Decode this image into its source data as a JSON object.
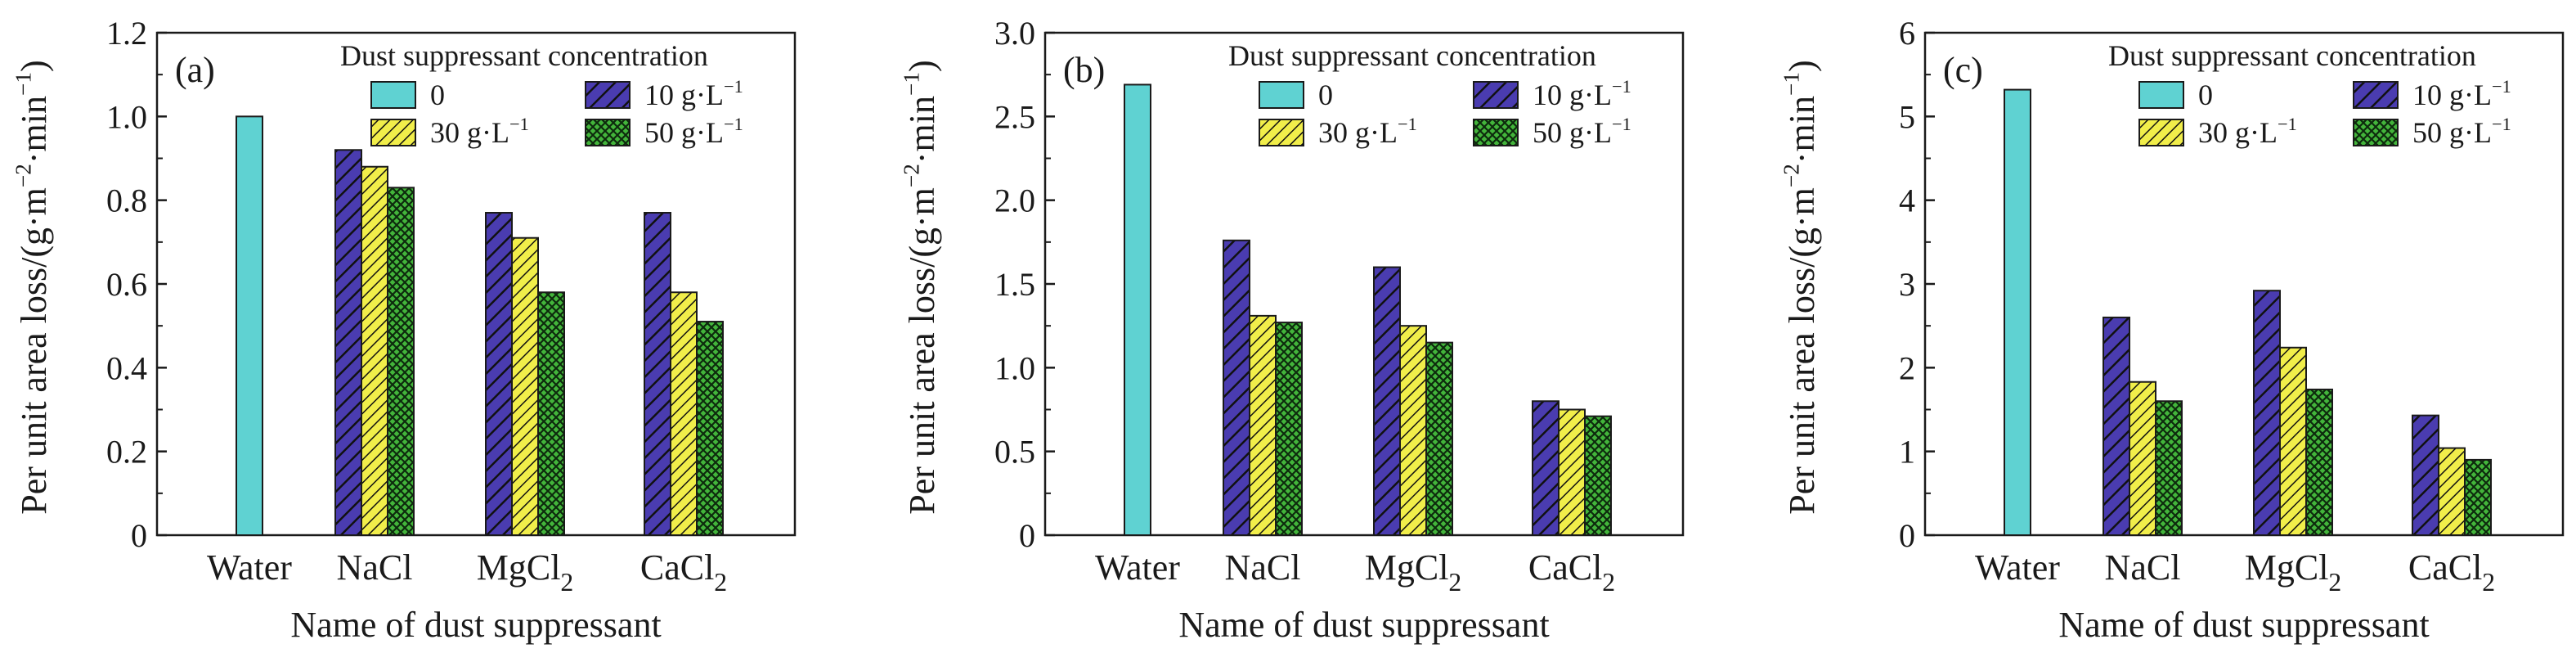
{
  "chart_data": [
    {
      "type": "bar",
      "panel_label": "(a)",
      "xlabel": "Name of dust suppressant",
      "ylabel": "Per unit area loss/(g·m⁻²·min⁻¹)",
      "ylim": [
        0,
        1.2
      ],
      "yticks": [
        "0",
        "0.2",
        "0.4",
        "0.6",
        "0.8",
        "1.0",
        "1.2"
      ],
      "ytick_values": [
        0,
        0.2,
        0.4,
        0.6,
        0.8,
        1.0,
        1.2
      ],
      "legend_title": "Dust suppressant concentration",
      "categories": [
        "Water",
        "NaCl",
        "MgCl2",
        "CaCl2"
      ],
      "series": [
        {
          "name": "0",
          "values": [
            1.0,
            null,
            null,
            null
          ]
        },
        {
          "name": "10 g·L⁻¹",
          "values": [
            null,
            0.92,
            0.77,
            0.77
          ]
        },
        {
          "name": "30 g·L⁻¹",
          "values": [
            null,
            0.88,
            0.71,
            0.58
          ]
        },
        {
          "name": "50 g·L⁻¹",
          "values": [
            null,
            0.83,
            0.58,
            0.51
          ]
        }
      ]
    },
    {
      "type": "bar",
      "panel_label": "(b)",
      "xlabel": "Name of dust suppressant",
      "ylabel": "Per unit area loss/(g·m⁻²·min⁻¹)",
      "ylim": [
        0,
        3.0
      ],
      "yticks": [
        "0",
        "0.5",
        "1.0",
        "1.5",
        "2.0",
        "2.5",
        "3.0"
      ],
      "ytick_values": [
        0,
        0.5,
        1.0,
        1.5,
        2.0,
        2.5,
        3.0
      ],
      "legend_title": "Dust suppressant concentration",
      "categories": [
        "Water",
        "NaCl",
        "MgCl2",
        "CaCl2"
      ],
      "series": [
        {
          "name": "0",
          "values": [
            2.69,
            null,
            null,
            null
          ]
        },
        {
          "name": "10 g·L⁻¹",
          "values": [
            null,
            1.76,
            1.6,
            0.8
          ]
        },
        {
          "name": "30 g·L⁻¹",
          "values": [
            null,
            1.31,
            1.25,
            0.75
          ]
        },
        {
          "name": "50 g·L⁻¹",
          "values": [
            null,
            1.27,
            1.15,
            0.71
          ]
        }
      ]
    },
    {
      "type": "bar",
      "panel_label": "(c)",
      "xlabel": "Name of dust suppressant",
      "ylabel": "Per unit area loss/(g·m⁻²·min⁻¹)",
      "ylim": [
        0,
        6
      ],
      "yticks": [
        "0",
        "1",
        "2",
        "3",
        "4",
        "5",
        "6"
      ],
      "ytick_values": [
        0,
        1,
        2,
        3,
        4,
        5,
        6
      ],
      "legend_title": "Dust suppressant concentration",
      "categories": [
        "Water",
        "NaCl",
        "MgCl2",
        "CaCl2"
      ],
      "series": [
        {
          "name": "0",
          "values": [
            5.32,
            null,
            null,
            null
          ]
        },
        {
          "name": "10 g·L⁻¹",
          "values": [
            null,
            2.6,
            2.92,
            1.43
          ]
        },
        {
          "name": "30 g·L⁻¹",
          "values": [
            null,
            1.83,
            2.24,
            1.04
          ]
        },
        {
          "name": "50 g·L⁻¹",
          "values": [
            null,
            1.6,
            1.74,
            0.9
          ]
        }
      ]
    }
  ],
  "series_styles": [
    {
      "fill": "#5fd2d2",
      "pattern": "solid"
    },
    {
      "fill": "#4a3cb0",
      "pattern": "hatch-wide"
    },
    {
      "fill": "#f1ee4a",
      "pattern": "hatch-fine"
    },
    {
      "fill": "#43b53b",
      "pattern": "crosshatch"
    }
  ]
}
